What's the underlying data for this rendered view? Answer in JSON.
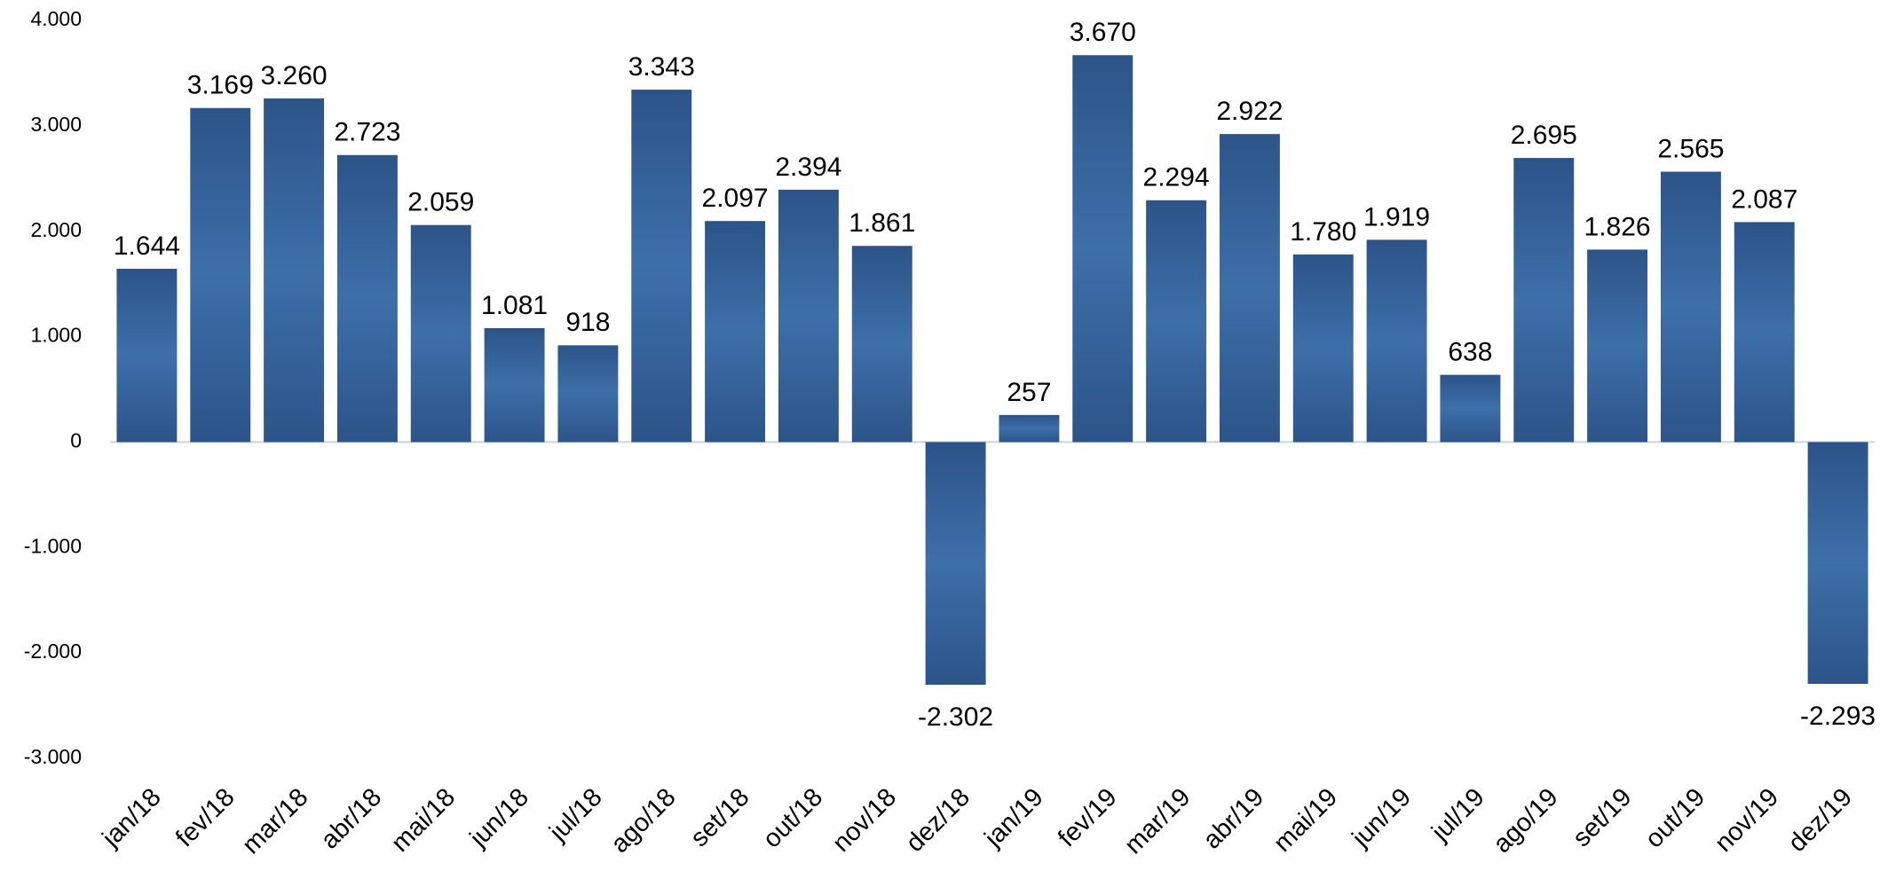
{
  "chart_data": {
    "type": "bar",
    "categories": [
      "jan/18",
      "fev/18",
      "mar/18",
      "abr/18",
      "mai/18",
      "jun/18",
      "jul/18",
      "ago/18",
      "set/18",
      "out/18",
      "nov/18",
      "dez/18",
      "jan/19",
      "fev/19",
      "mar/19",
      "abr/19",
      "mai/19",
      "jun/19",
      "jul/19",
      "ago/19",
      "set/19",
      "out/19",
      "nov/19",
      "dez/19"
    ],
    "values": [
      1644,
      3169,
      3260,
      2723,
      2059,
      1081,
      918,
      3343,
      2097,
      2394,
      1861,
      -2302,
      257,
      3670,
      2294,
      2922,
      1780,
      1919,
      638,
      2695,
      1826,
      2565,
      2087,
      -2293
    ],
    "value_labels": [
      "1.644",
      "3.169",
      "3.260",
      "2.723",
      "2.059",
      "1.081",
      "918",
      "3.343",
      "2.097",
      "2.394",
      "1.861",
      "-2.302",
      "257",
      "3.670",
      "2.294",
      "2.922",
      "1.780",
      "1.919",
      "638",
      "2.695",
      "1.826",
      "2.565",
      "2.087",
      "-2.293"
    ],
    "color": "#3d6fa9",
    "ylim": [
      -3000,
      4000
    ],
    "yticks": [
      {
        "value": -3000,
        "label": "-3.000"
      },
      {
        "value": -2000,
        "label": "-2.000"
      },
      {
        "value": -1000,
        "label": "-1.000"
      },
      0,
      {
        "value": 1000,
        "label": "1.000"
      },
      {
        "value": 2000,
        "label": "2.000"
      },
      {
        "value": 3000,
        "label": "3.000"
      },
      {
        "value": 4000,
        "label": "4.000"
      }
    ],
    "grid": false
  }
}
